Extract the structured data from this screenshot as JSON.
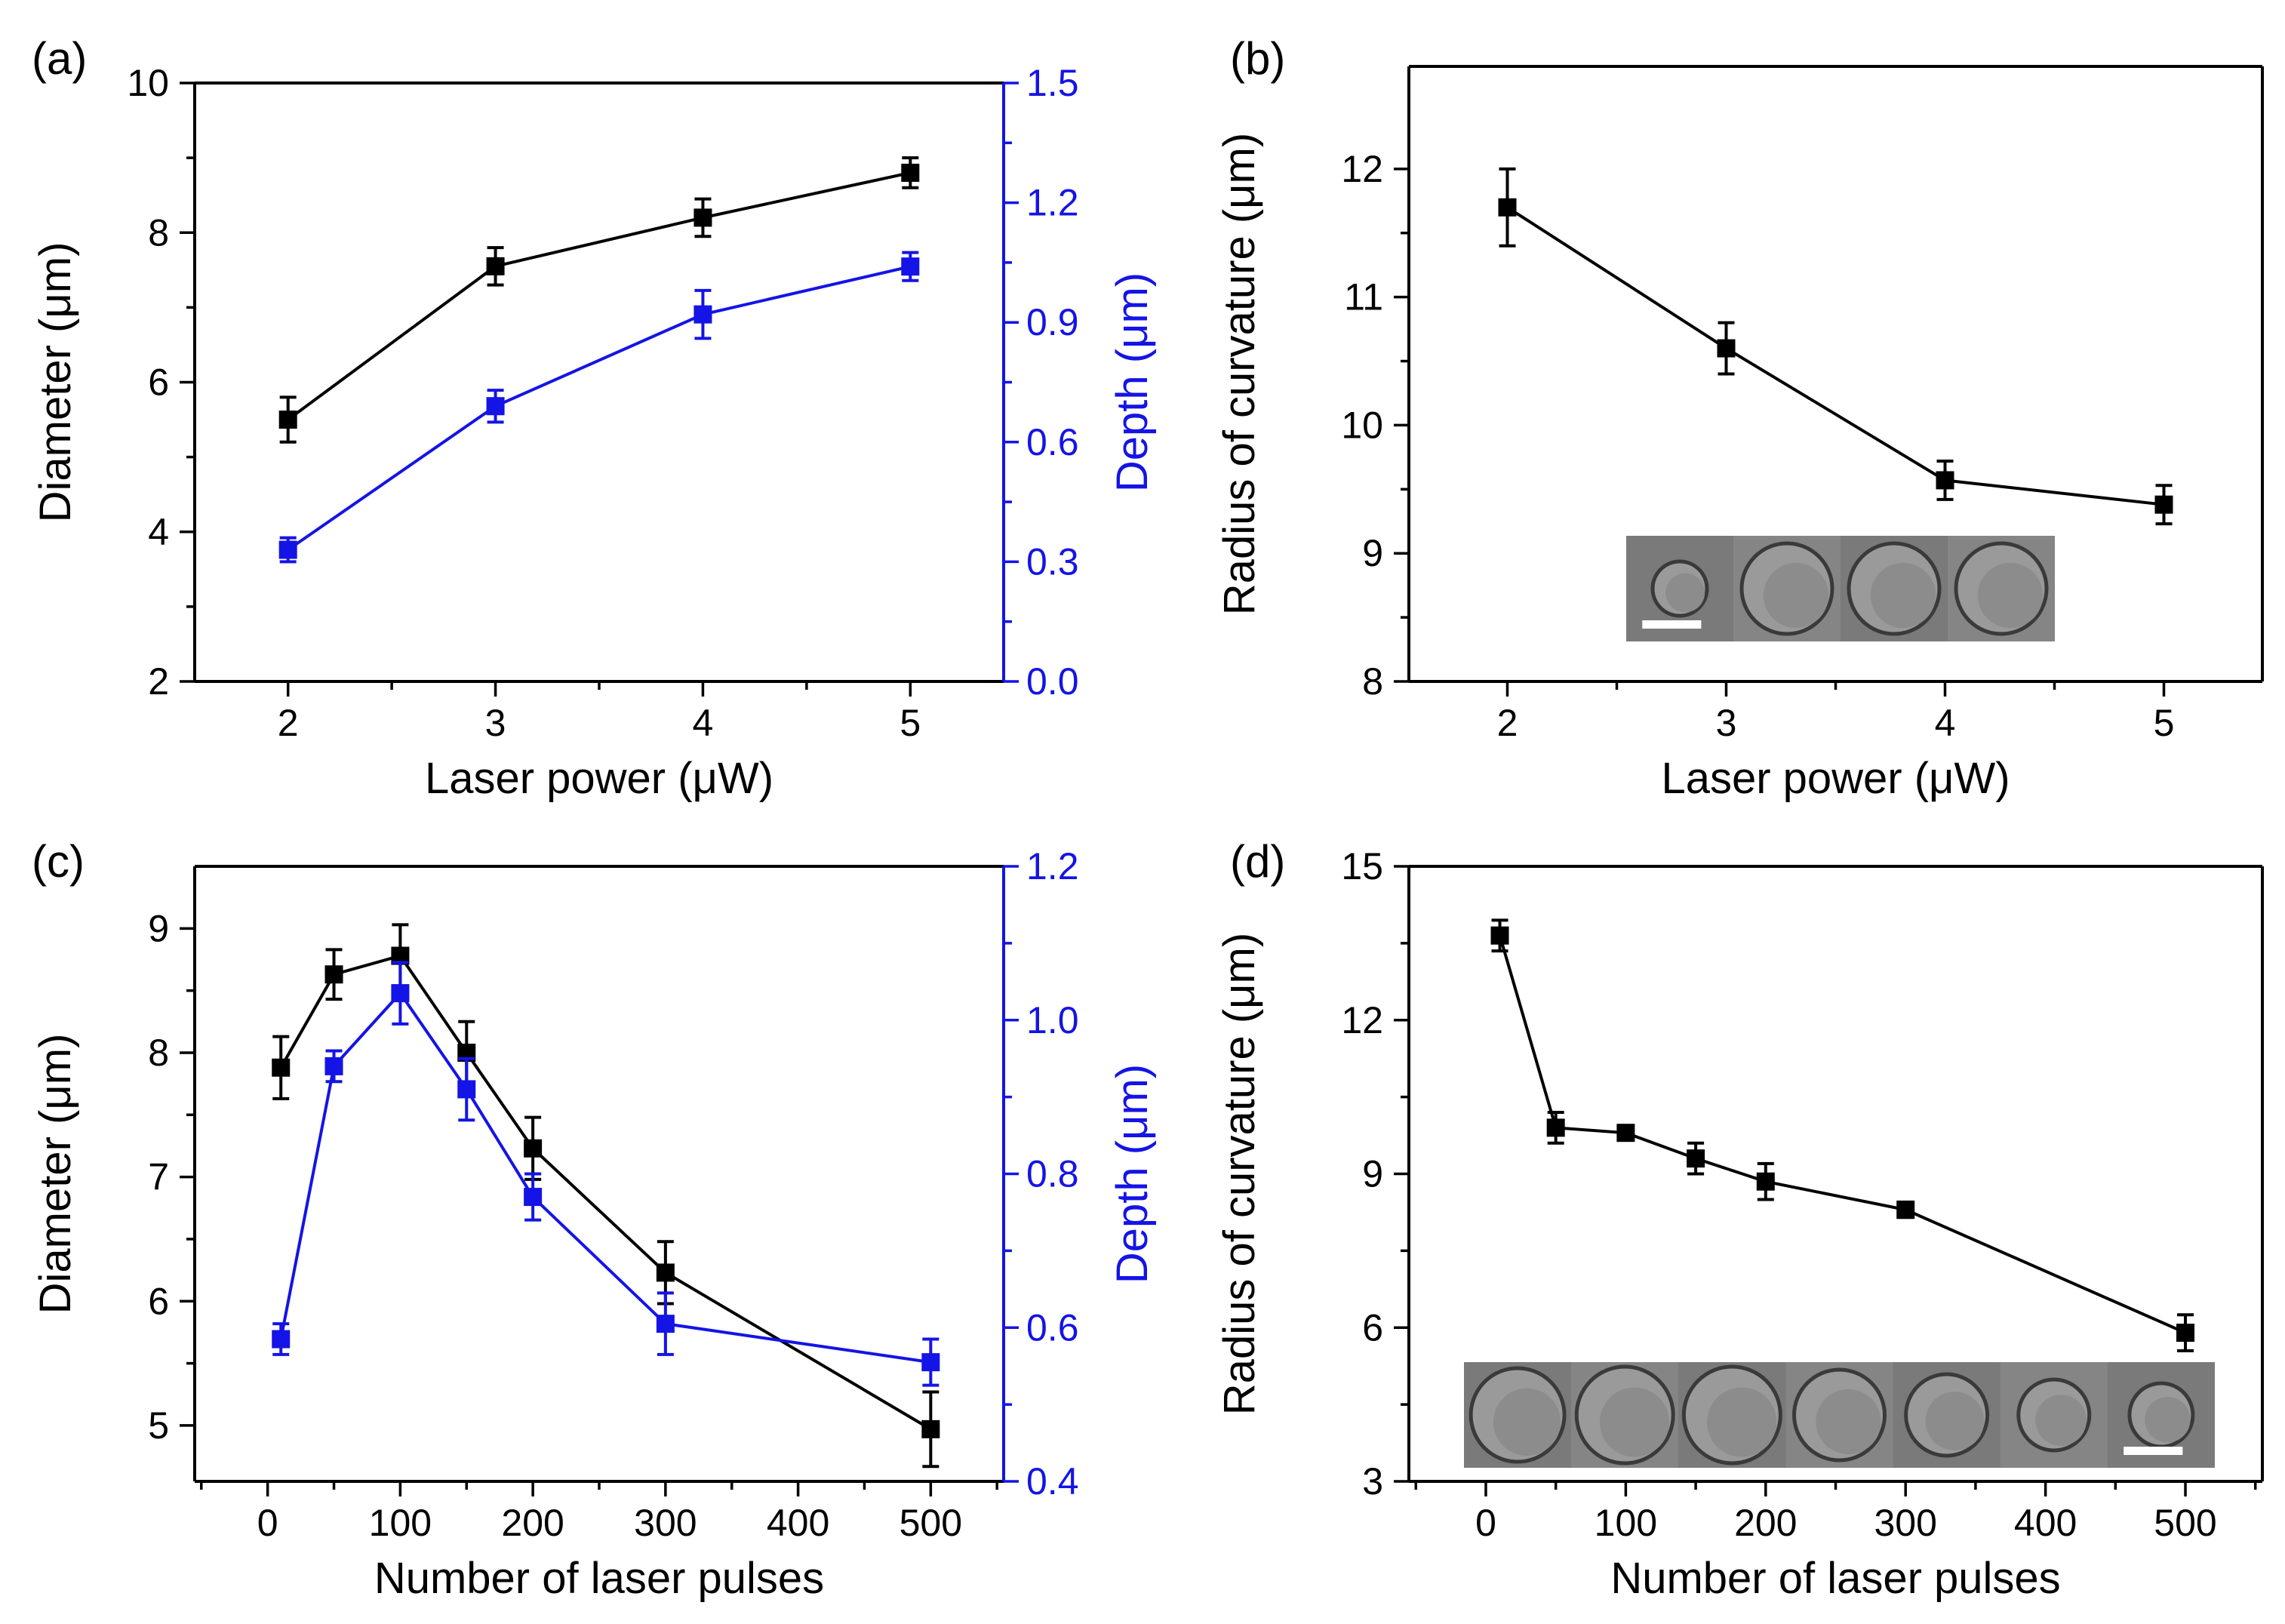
{
  "chart_data": [
    {
      "panel": "(a)",
      "type": "line",
      "xlabel": "Laser power (μW)",
      "ylabel": "Diameter (μm)",
      "y2label": "Depth (μm)",
      "xlim": [
        1.55,
        5.45
      ],
      "xticks": [
        2,
        3,
        4,
        5
      ],
      "ylim": [
        2,
        10
      ],
      "yticks": [
        2,
        4,
        6,
        8,
        10
      ],
      "y2lim": [
        0.0,
        1.5
      ],
      "y2ticks": [
        "0.0",
        "0.3",
        "0.6",
        "0.9",
        "1.2",
        "1.5"
      ],
      "series": [
        {
          "name": "Diameter",
          "axis": "left",
          "color": "#000000",
          "x": [
            2,
            3,
            4,
            5
          ],
          "values": [
            5.5,
            7.55,
            8.2,
            8.8
          ],
          "errors": [
            0.3,
            0.25,
            0.25,
            0.2
          ]
        },
        {
          "name": "Depth",
          "axis": "right",
          "color": "#1414e6",
          "x": [
            2,
            3,
            4,
            5
          ],
          "values": [
            0.33,
            0.69,
            0.92,
            1.04
          ],
          "errors": [
            0.03,
            0.04,
            0.06,
            0.035
          ]
        }
      ]
    },
    {
      "panel": "(b)",
      "type": "line",
      "xlabel": "Laser power (μW)",
      "ylabel": "Radius of curvature (μm)",
      "xlim": [
        1.55,
        5.45
      ],
      "xticks": [
        2,
        3,
        4,
        5
      ],
      "ylim": [
        8,
        12.8
      ],
      "yticks": [
        8,
        9,
        10,
        11,
        12
      ],
      "inset": "SEM image of four microlens craters with scale bar",
      "series": [
        {
          "name": "Radius of curvature",
          "axis": "left",
          "color": "#000000",
          "x": [
            2,
            3,
            4,
            5
          ],
          "values": [
            11.7,
            10.6,
            9.57,
            9.38
          ],
          "errors": [
            0.3,
            0.2,
            0.15,
            0.15
          ]
        }
      ]
    },
    {
      "panel": "(c)",
      "type": "line",
      "xlabel": "Number of laser pulses",
      "ylabel": "Diameter (μm)",
      "y2label": "Depth (μm)",
      "xlim": [
        -55,
        555
      ],
      "xticks": [
        0,
        100,
        200,
        300,
        400,
        500
      ],
      "ylim": [
        4.55,
        9.5
      ],
      "yticks": [
        5,
        6,
        7,
        8,
        9
      ],
      "y2lim": [
        0.4,
        1.2
      ],
      "y2ticks": [
        "0.4",
        "0.6",
        "0.8",
        "1.0",
        "1.2"
      ],
      "series": [
        {
          "name": "Diameter",
          "axis": "left",
          "color": "#000000",
          "x": [
            10,
            50,
            100,
            150,
            200,
            300,
            500
          ],
          "values": [
            7.88,
            8.63,
            8.78,
            8.0,
            7.23,
            6.23,
            4.97
          ],
          "errors": [
            0.25,
            0.2,
            0.25,
            0.25,
            0.25,
            0.25,
            0.3
          ]
        },
        {
          "name": "Depth",
          "axis": "right",
          "color": "#1414e6",
          "x": [
            10,
            50,
            100,
            150,
            200,
            300,
            500
          ],
          "values": [
            0.585,
            0.94,
            1.035,
            0.91,
            0.77,
            0.605,
            0.555
          ],
          "errors": [
            0.02,
            0.02,
            0.04,
            0.04,
            0.03,
            0.04,
            0.03
          ]
        }
      ]
    },
    {
      "panel": "(d)",
      "type": "line",
      "xlabel": "Number of laser pulses",
      "ylabel": "Radius of curvature (μm)",
      "xlim": [
        -55,
        555
      ],
      "xticks": [
        0,
        100,
        200,
        300,
        400,
        500
      ],
      "ylim": [
        3,
        15
      ],
      "yticks": [
        3,
        6,
        9,
        12,
        15
      ],
      "inset": "SEM image of seven microlens craters with scale bar",
      "series": [
        {
          "name": "Radius of curvature",
          "axis": "left",
          "color": "#000000",
          "x": [
            10,
            50,
            100,
            150,
            200,
            300,
            500
          ],
          "values": [
            13.65,
            9.9,
            9.8,
            9.3,
            8.85,
            8.3,
            5.9
          ],
          "errors": [
            0.3,
            0.3,
            0.1,
            0.3,
            0.35,
            0.15,
            0.35
          ]
        }
      ]
    }
  ]
}
